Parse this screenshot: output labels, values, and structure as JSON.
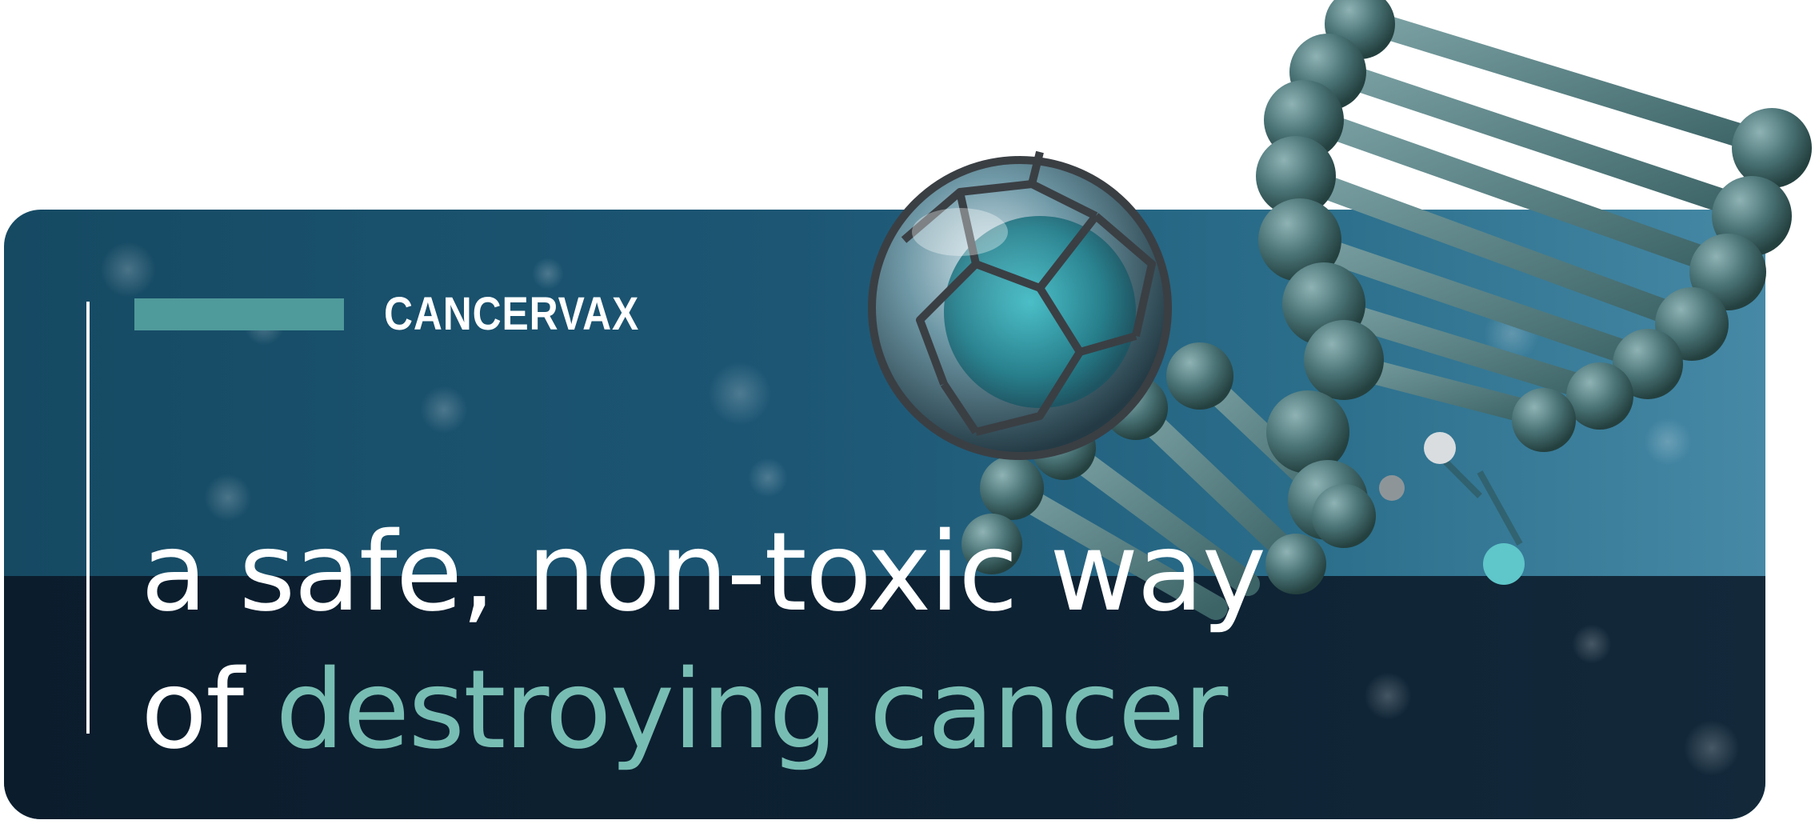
{
  "brand": {
    "name": "CANCERVAX",
    "accent_color": "#4f9a9b"
  },
  "headline": {
    "line1": "a safe, non-toxic way",
    "line2_prefix": "of ",
    "line2_accent": "destroying cancer",
    "accent_color": "#78bdb3"
  },
  "illustration": {
    "sphere": "nanoparticle-sphere-icon",
    "helix": "dna-helix-icon"
  }
}
